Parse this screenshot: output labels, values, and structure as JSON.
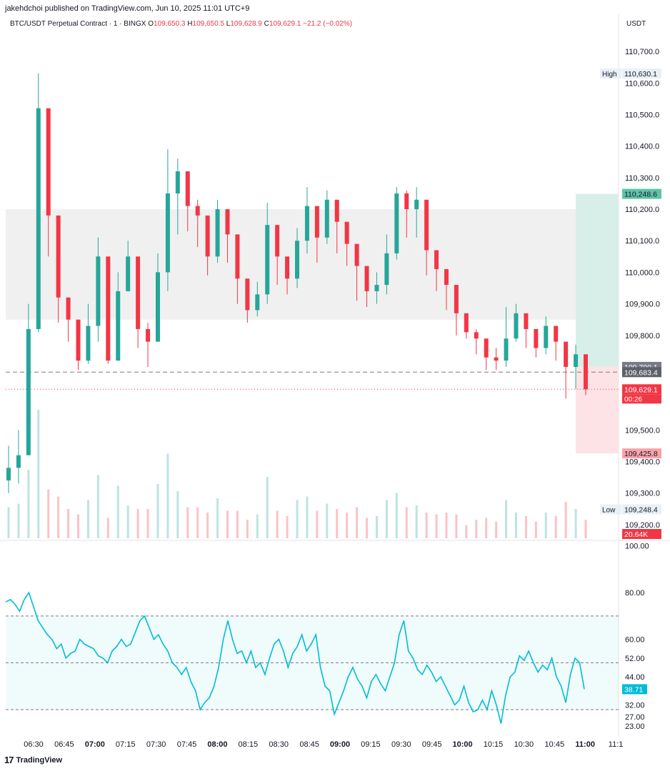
{
  "published_line": "jakehdchoi published on TradingView.com, Jun 10, 2025 11:01 UTC+9",
  "header": {
    "symbol": "BTC/USDT Perpetual Contract · 1 · BINGX",
    "o_label": "O",
    "o_value": "109,650.3",
    "h_label": "H",
    "h_value": "109,650.5",
    "l_label": "L",
    "l_value": "109,628.9",
    "c_label": "C",
    "c_value": "109,629.1",
    "change": "−21.2 (−0.02%)"
  },
  "currency": "USDT",
  "colors": {
    "up": "#26a69a",
    "down": "#f23645",
    "rsi_line": "#00bcd4",
    "zone_grey": "#f0f0f0",
    "tp_zone": "#d8efe9",
    "sl_zone": "#fde3e5"
  },
  "price_axis_ticks": [
    "110,700.0",
    "110,600.0",
    "110,500.0",
    "110,400.0",
    "110,300.0",
    "110,200.0",
    "110,100.0",
    "110,000.0",
    "109,900.0",
    "109,800.0",
    "109,500.0",
    "109,400.0",
    "109,300.0",
    "109,200.0"
  ],
  "price_labels": {
    "high_tag": "High",
    "high_value": "110,630.1",
    "low_tag": "Low",
    "low_value": "109,248.4",
    "tp_value": "110,248.6",
    "entry_value": "109,700.1",
    "dashed_value": "109,683.4",
    "current_value": "109,629.1",
    "countdown": "00:26",
    "sl_value": "109,425.8",
    "volume_value": "20.64K"
  },
  "rsi_axis_ticks": [
    "100.00",
    "80.00",
    "60.00",
    "52.00",
    "44.00",
    "32.00",
    "27.00",
    "23.00"
  ],
  "rsi_current": "38.71",
  "time_axis_ticks": [
    "06:30",
    "06:45",
    "07:00",
    "07:15",
    "07:30",
    "07:45",
    "08:00",
    "08:15",
    "08:30",
    "08:45",
    "09:00",
    "09:15",
    "09:30",
    "09:45",
    "10:00",
    "10:15",
    "10:30",
    "10:45",
    "11:00",
    "11:1"
  ],
  "time_axis_bold": [
    "07:00",
    "08:00",
    "09:00",
    "10:00",
    "11:00"
  ],
  "footer_brand": "TradingView",
  "chart_data": {
    "type": "candlestick",
    "symbol": "BTC/USDT Perpetual Contract",
    "interval": "1",
    "exchange": "BINGX",
    "price_range": [
      109150,
      110750
    ],
    "grid": false,
    "candles_approx": {
      "times": [
        "06:20",
        "06:25",
        "06:28",
        "06:29",
        "06:30",
        "06:35",
        "06:40",
        "06:45",
        "06:50",
        "06:55",
        "07:00",
        "07:05",
        "07:10",
        "07:15",
        "07:20",
        "07:25",
        "07:30",
        "07:35",
        "07:40",
        "07:45",
        "07:50",
        "07:55",
        "08:00",
        "08:05",
        "08:10",
        "08:15",
        "08:20",
        "08:25",
        "08:30",
        "08:35",
        "08:40",
        "08:45",
        "08:50",
        "08:55",
        "09:00",
        "09:05",
        "09:10",
        "09:15",
        "09:20",
        "09:25",
        "09:30",
        "09:35",
        "09:40",
        "09:45",
        "09:50",
        "09:55",
        "10:00",
        "10:05",
        "10:10",
        "10:15",
        "10:20",
        "10:25",
        "10:30",
        "10:35",
        "10:40",
        "10:45",
        "10:50",
        "10:55",
        "11:00"
      ],
      "close": [
        109380,
        109420,
        109820,
        110520,
        110180,
        109920,
        109850,
        109720,
        109830,
        110050,
        109720,
        109940,
        110050,
        109820,
        109780,
        110000,
        110250,
        110320,
        110210,
        110180,
        110050,
        110200,
        110120,
        109980,
        109880,
        109930,
        110150,
        110050,
        109980,
        110100,
        110210,
        110110,
        110230,
        110160,
        110090,
        110020,
        109940,
        109960,
        110060,
        110250,
        110200,
        110230,
        110070,
        110010,
        109960,
        109870,
        109810,
        109790,
        109730,
        109720,
        109790,
        109870,
        109820,
        109760,
        109830,
        109780,
        109700,
        109740,
        109629
      ],
      "high": [
        109450,
        109500,
        109900,
        110630,
        110300,
        110050,
        109920,
        109800,
        109900,
        110110,
        109800,
        110000,
        110100,
        109900,
        109840,
        110060,
        110390,
        110360,
        110280,
        110230,
        110110,
        110230,
        110160,
        110030,
        109920,
        109970,
        110220,
        110090,
        110030,
        110140,
        110270,
        110160,
        110260,
        110200,
        110140,
        110060,
        109980,
        110000,
        110120,
        110270,
        110260,
        110270,
        110110,
        110050,
        110000,
        109910,
        109840,
        109820,
        109780,
        109760,
        109890,
        109900,
        109860,
        109800,
        109860,
        109820,
        109780,
        109770,
        109690
      ],
      "low": [
        109300,
        109330,
        109540,
        109810,
        110050,
        109840,
        109780,
        109690,
        109710,
        109780,
        109710,
        109730,
        109940,
        109760,
        109700,
        109780,
        109940,
        110120,
        110130,
        110080,
        109990,
        110030,
        110030,
        109900,
        109840,
        109860,
        109900,
        109960,
        109930,
        109950,
        110060,
        110030,
        110090,
        110060,
        110020,
        109910,
        109890,
        109900,
        109930,
        110040,
        110110,
        110110,
        109990,
        109940,
        109880,
        109800,
        109790,
        109740,
        109690,
        109690,
        109700,
        109780,
        109760,
        109730,
        109740,
        109720,
        109600,
        109630,
        109610
      ]
    },
    "high_marker": 110630.1,
    "low_marker": 109248.4,
    "position": {
      "entry": 109700.1,
      "take_profit": 110248.6,
      "stop_loss": 109425.8
    },
    "consolidation_zone": [
      109850,
      110200
    ],
    "current_price": 109629.1,
    "volume_last": "20.64K",
    "rsi": {
      "range": [
        20,
        100
      ],
      "bands": [
        30,
        50,
        70
      ],
      "current": 38.71,
      "values": [
        76,
        77,
        75,
        72,
        77,
        80,
        74,
        68,
        65,
        62,
        60,
        56,
        58,
        52,
        54,
        55,
        60,
        58,
        57,
        56,
        53,
        52,
        50,
        55,
        57,
        60,
        57,
        58,
        63,
        68,
        70,
        65,
        60,
        62,
        58,
        55,
        50,
        48,
        45,
        48,
        42,
        38,
        30,
        33,
        35,
        40,
        48,
        60,
        68,
        60,
        54,
        55,
        50,
        55,
        48,
        50,
        45,
        52,
        58,
        60,
        55,
        48,
        54,
        57,
        62,
        55,
        58,
        62,
        48,
        40,
        38,
        28,
        33,
        38,
        44,
        48,
        43,
        40,
        35,
        42,
        45,
        41,
        38,
        44,
        50,
        62,
        68,
        55,
        52,
        47,
        45,
        49,
        46,
        42,
        44,
        40,
        36,
        32,
        34,
        40,
        33,
        29,
        30,
        34,
        30,
        38,
        32,
        24,
        36,
        44,
        46,
        53,
        51,
        55,
        50,
        46,
        49,
        47,
        52,
        44,
        40,
        33,
        45,
        52,
        50,
        38.71
      ]
    }
  }
}
